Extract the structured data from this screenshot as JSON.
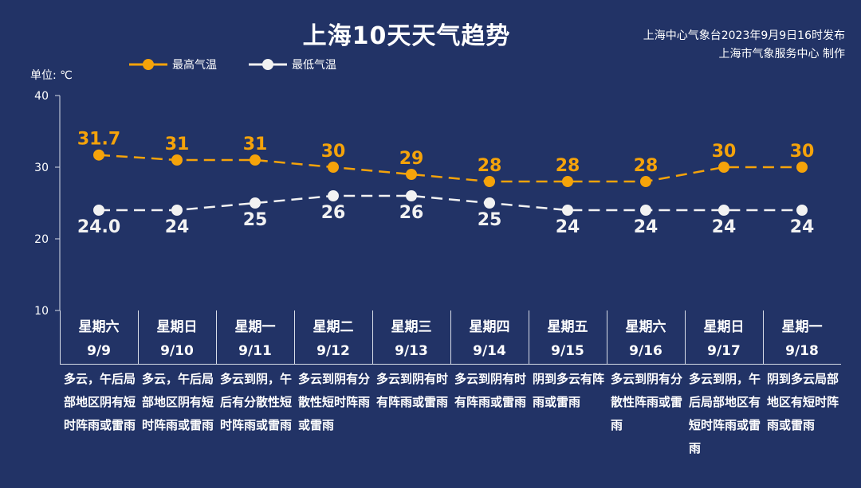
{
  "title": "上海10天天气趋势",
  "source_line1": "上海中心气象台2023年9月9日16时发布",
  "source_line2": "上海市气象服务中心 制作",
  "unit_label": "单位: ℃",
  "colors": {
    "background": "#223366",
    "high": "#f5a30a",
    "low": "#f2f2f2",
    "axis": "#d8dde8"
  },
  "chart_data": {
    "type": "line",
    "title": "上海10天天气趋势",
    "ylabel": "单位: ℃",
    "ylim": [
      10,
      40
    ],
    "yticks": [
      10,
      20,
      30,
      40
    ],
    "grid": false,
    "legend_position": "top-left",
    "categories": [
      "9/9",
      "9/10",
      "9/11",
      "9/12",
      "9/13",
      "9/14",
      "9/15",
      "9/16",
      "9/17",
      "9/18"
    ],
    "series": [
      {
        "name": "最高气温",
        "color": "#f5a30a",
        "line_style": "dashed",
        "values": [
          31.7,
          31,
          31,
          30,
          29,
          28,
          28,
          28,
          30,
          30
        ],
        "labels": [
          "31.7",
          "31",
          "31",
          "30",
          "29",
          "28",
          "28",
          "28",
          "30",
          "30"
        ]
      },
      {
        "name": "最低气温",
        "color": "#f2f2f2",
        "line_style": "dashed",
        "values": [
          24.0,
          24,
          25,
          26,
          26,
          25,
          24,
          24,
          24,
          24
        ],
        "labels": [
          "24.0",
          "24",
          "25",
          "26",
          "26",
          "25",
          "24",
          "24",
          "24",
          "24"
        ]
      }
    ]
  },
  "days": [
    {
      "weekday": "星期六",
      "date": "9/9",
      "weather": "多云，午后局部地区阴有短时阵雨或雷雨"
    },
    {
      "weekday": "星期日",
      "date": "9/10",
      "weather": "多云，午后局部地区阴有短时阵雨或雷雨"
    },
    {
      "weekday": "星期一",
      "date": "9/11",
      "weather": "多云到阴，午后有分散性短时阵雨或雷雨"
    },
    {
      "weekday": "星期二",
      "date": "9/12",
      "weather": "多云到阴有分散性短时阵雨或雷雨"
    },
    {
      "weekday": "星期三",
      "date": "9/13",
      "weather": "多云到阴有时有阵雨或雷雨"
    },
    {
      "weekday": "星期四",
      "date": "9/14",
      "weather": "多云到阴有时有阵雨或雷雨"
    },
    {
      "weekday": "星期五",
      "date": "9/15",
      "weather": "阴到多云有阵雨或雷雨"
    },
    {
      "weekday": "星期六",
      "date": "9/16",
      "weather": "多云到阴有分散性阵雨或雷雨"
    },
    {
      "weekday": "星期日",
      "date": "9/17",
      "weather": "多云到阴，午后局部地区有短时阵雨或雷雨"
    },
    {
      "weekday": "星期一",
      "date": "9/18",
      "weather": "阴到多云局部地区有短时阵雨或雷雨"
    }
  ]
}
